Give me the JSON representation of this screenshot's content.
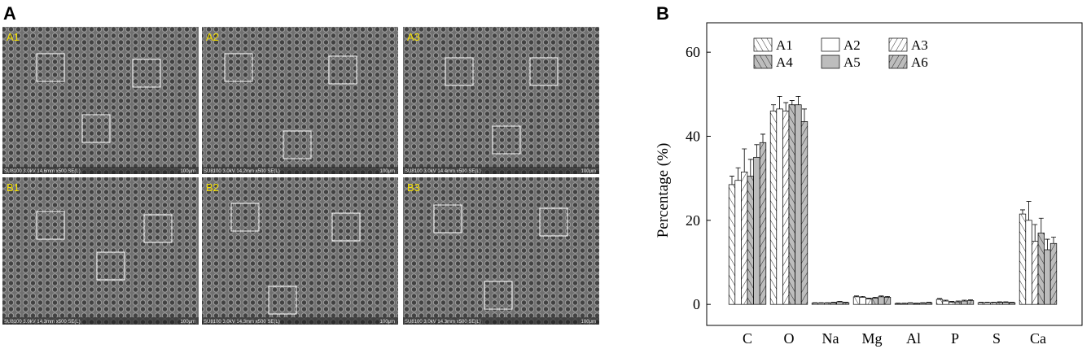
{
  "panel_labels": [
    "A",
    "B"
  ],
  "micrographs": [
    {
      "label": "A1",
      "caption": "SU8100 3.0kV 14.6mm x500 SE(L)",
      "scale": "100μm"
    },
    {
      "label": "A2",
      "caption": "SU8100 3.0kV 14.2mm x500 SE(L)",
      "scale": "100μm"
    },
    {
      "label": "A3",
      "caption": "SU8100 3.0kV 14.4mm x500 SE(L)",
      "scale": "100μm"
    },
    {
      "label": "B1",
      "caption": "SU8100 3.0kV 14.3mm x500 SE(L)",
      "scale": "100μm"
    },
    {
      "label": "B2",
      "caption": "SU8100 3.0kV 14.3mm x500 SE(L)",
      "scale": "100μm"
    },
    {
      "label": "B3",
      "caption": "SU8100 3.0kV 14.3mm x500 SE(L)",
      "scale": "100μm"
    }
  ],
  "chart_data": {
    "type": "bar",
    "y_label": "Percentage (%)",
    "categories": [
      "C",
      "O",
      "Na",
      "Mg",
      "Al",
      "P",
      "S",
      "Ca"
    ],
    "series": [
      {
        "name": "A1",
        "color": "#ffffff",
        "hatch": "/",
        "values": [
          28.5,
          46,
          0.3,
          1.8,
          0.2,
          1.2,
          0.4,
          21.5
        ],
        "errors": [
          2,
          1.5,
          0.1,
          0.2,
          0.1,
          0.2,
          0.1,
          1
        ]
      },
      {
        "name": "A2",
        "color": "#ffffff",
        "hatch": "",
        "values": [
          29.5,
          46.5,
          0.3,
          1.7,
          0.2,
          0.8,
          0.4,
          20
        ],
        "errors": [
          3,
          3,
          0.1,
          0.2,
          0.1,
          0.2,
          0.1,
          4.5
        ]
      },
      {
        "name": "A3",
        "color": "#ffffff",
        "hatch": "\\",
        "values": [
          31.5,
          46,
          0.3,
          1.3,
          0.3,
          0.5,
          0.4,
          15
        ],
        "errors": [
          5.5,
          2,
          0.1,
          0.2,
          0.1,
          0.2,
          0.1,
          4
        ]
      },
      {
        "name": "A4",
        "color": "#bdbdbd",
        "hatch": "/",
        "values": [
          30.5,
          47.5,
          0.4,
          1.5,
          0.2,
          0.6,
          0.5,
          17
        ],
        "errors": [
          4,
          1,
          0.1,
          0.2,
          0.1,
          0.2,
          0.1,
          3.5
        ]
      },
      {
        "name": "A5",
        "color": "#bdbdbd",
        "hatch": "",
        "values": [
          35,
          47.5,
          0.6,
          1.8,
          0.3,
          0.8,
          0.5,
          13
        ],
        "errors": [
          3,
          2,
          0.1,
          0.2,
          0.1,
          0.2,
          0.1,
          2.5
        ]
      },
      {
        "name": "A6",
        "color": "#bdbdbd",
        "hatch": "\\",
        "values": [
          38.5,
          43.5,
          0.4,
          1.7,
          0.4,
          0.9,
          0.4,
          14.5
        ],
        "errors": [
          2,
          3,
          0.1,
          0.2,
          0.1,
          0.2,
          0.1,
          1.5
        ]
      }
    ],
    "ylim": [
      -5,
      67
    ],
    "yticks": [
      0,
      20,
      40,
      60
    ]
  }
}
